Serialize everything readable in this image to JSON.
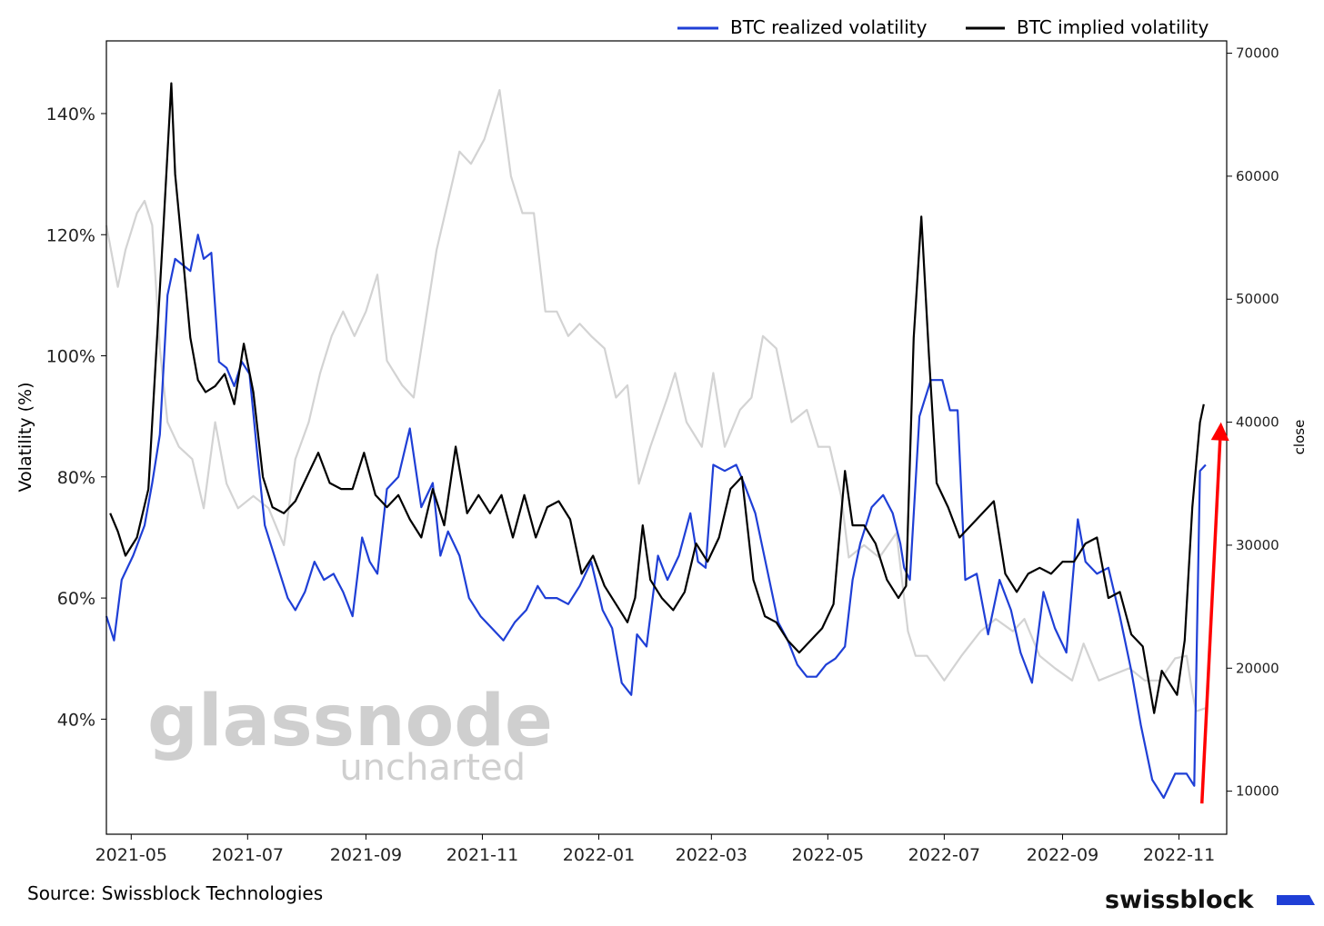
{
  "chart_data": {
    "type": "line",
    "legend": {
      "placement": "top-right",
      "entries": [
        "BTC realized volatility",
        "BTC implied volatility"
      ]
    },
    "x_ticks": [
      "2021-05",
      "2021-07",
      "2021-09",
      "2021-11",
      "2022-01",
      "2022-03",
      "2022-05",
      "2022-07",
      "2022-09",
      "2022-11"
    ],
    "y_left": {
      "label": "Volatility (%)",
      "ticks": [
        "40%",
        "60%",
        "80%",
        "100%",
        "120%",
        "140%"
      ],
      "tick_values": [
        40,
        60,
        80,
        100,
        120,
        140
      ],
      "range": [
        21,
        152
      ]
    },
    "y_right": {
      "label": "close",
      "ticks": [
        "10000",
        "20000",
        "30000",
        "40000",
        "50000",
        "60000",
        "70000"
      ],
      "tick_values": [
        10000,
        20000,
        30000,
        40000,
        50000,
        60000,
        70000
      ],
      "range": [
        6500,
        71000
      ]
    },
    "x_range": [
      "2021-04-18",
      "2022-11-26"
    ],
    "series": [
      {
        "name": "BTC realized volatility",
        "axis": "left",
        "color": "#1f3fd6",
        "x": [
          "2021-04-18",
          "2021-04-22",
          "2021-04-26",
          "2021-05-02",
          "2021-05-08",
          "2021-05-12",
          "2021-05-16",
          "2021-05-20",
          "2021-05-24",
          "2021-05-28",
          "2021-06-01",
          "2021-06-05",
          "2021-06-08",
          "2021-06-12",
          "2021-06-16",
          "2021-06-20",
          "2021-06-24",
          "2021-06-28",
          "2021-07-02",
          "2021-07-06",
          "2021-07-10",
          "2021-07-14",
          "2021-07-18",
          "2021-07-22",
          "2021-07-26",
          "2021-07-31",
          "2021-08-05",
          "2021-08-10",
          "2021-08-15",
          "2021-08-20",
          "2021-08-25",
          "2021-08-30",
          "2021-09-03",
          "2021-09-07",
          "2021-09-12",
          "2021-09-18",
          "2021-09-24",
          "2021-09-30",
          "2021-10-06",
          "2021-10-10",
          "2021-10-14",
          "2021-10-20",
          "2021-10-25",
          "2021-10-31",
          "2021-11-06",
          "2021-11-12",
          "2021-11-18",
          "2021-11-24",
          "2021-11-30",
          "2021-12-04",
          "2021-12-10",
          "2021-12-16",
          "2021-12-22",
          "2021-12-28",
          "2022-01-03",
          "2022-01-08",
          "2022-01-13",
          "2022-01-18",
          "2022-01-21",
          "2022-01-26",
          "2022-02-01",
          "2022-02-06",
          "2022-02-12",
          "2022-02-18",
          "2022-02-22",
          "2022-02-26",
          "2022-03-02",
          "2022-03-08",
          "2022-03-14",
          "2022-03-18",
          "2022-03-24",
          "2022-03-30",
          "2022-04-05",
          "2022-04-10",
          "2022-04-15",
          "2022-04-20",
          "2022-04-25",
          "2022-04-30",
          "2022-05-05",
          "2022-05-10",
          "2022-05-14",
          "2022-05-18",
          "2022-05-24",
          "2022-05-30",
          "2022-06-04",
          "2022-06-08",
          "2022-06-10",
          "2022-06-13",
          "2022-06-18",
          "2022-06-24",
          "2022-06-30",
          "2022-07-04",
          "2022-07-08",
          "2022-07-12",
          "2022-07-18",
          "2022-07-24",
          "2022-07-30",
          "2022-08-05",
          "2022-08-10",
          "2022-08-16",
          "2022-08-22",
          "2022-08-28",
          "2022-09-03",
          "2022-09-09",
          "2022-09-13",
          "2022-09-19",
          "2022-09-25",
          "2022-10-01",
          "2022-10-07",
          "2022-10-12",
          "2022-10-18",
          "2022-10-24",
          "2022-10-30",
          "2022-11-05",
          "2022-11-09",
          "2022-11-12",
          "2022-11-15"
        ],
        "y": [
          57,
          53,
          63,
          67,
          72,
          79,
          87,
          110,
          116,
          115,
          114,
          120,
          116,
          117,
          99,
          98,
          95,
          99,
          97,
          84,
          72,
          68,
          64,
          60,
          58,
          61,
          66,
          63,
          64,
          61,
          57,
          70,
          66,
          64,
          78,
          80,
          88,
          75,
          79,
          67,
          71,
          67,
          60,
          57,
          55,
          53,
          56,
          58,
          62,
          60,
          60,
          59,
          62,
          66,
          58,
          55,
          46,
          44,
          54,
          52,
          67,
          63,
          67,
          74,
          66,
          65,
          82,
          81,
          82,
          79,
          74,
          65,
          56,
          53,
          49,
          47,
          47,
          49,
          50,
          52,
          63,
          69,
          75,
          77,
          74,
          69,
          65,
          63,
          90,
          96,
          96,
          91,
          91,
          63,
          64,
          54,
          63,
          58,
          51,
          46,
          61,
          55,
          51,
          73,
          66,
          64,
          65,
          57,
          48,
          39,
          30,
          27,
          31,
          31,
          29,
          81,
          82
        ]
      },
      {
        "name": "BTC implied volatility",
        "axis": "left",
        "color": "#000000",
        "x": [
          "2021-04-20",
          "2021-04-24",
          "2021-04-28",
          "2021-05-04",
          "2021-05-10",
          "2021-05-14",
          "2021-05-18",
          "2021-05-22",
          "2021-05-24",
          "2021-05-27",
          "2021-06-01",
          "2021-06-05",
          "2021-06-09",
          "2021-06-14",
          "2021-06-19",
          "2021-06-24",
          "2021-06-29",
          "2021-07-04",
          "2021-07-09",
          "2021-07-14",
          "2021-07-20",
          "2021-07-26",
          "2021-08-01",
          "2021-08-07",
          "2021-08-13",
          "2021-08-19",
          "2021-08-25",
          "2021-08-31",
          "2021-09-06",
          "2021-09-12",
          "2021-09-18",
          "2021-09-24",
          "2021-09-30",
          "2021-10-06",
          "2021-10-12",
          "2021-10-18",
          "2021-10-24",
          "2021-10-30",
          "2021-11-05",
          "2021-11-11",
          "2021-11-17",
          "2021-11-23",
          "2021-11-29",
          "2021-12-05",
          "2021-12-11",
          "2021-12-17",
          "2021-12-23",
          "2021-12-29",
          "2022-01-04",
          "2022-01-10",
          "2022-01-16",
          "2022-01-20",
          "2022-01-24",
          "2022-01-28",
          "2022-02-03",
          "2022-02-09",
          "2022-02-15",
          "2022-02-21",
          "2022-02-27",
          "2022-03-05",
          "2022-03-11",
          "2022-03-17",
          "2022-03-23",
          "2022-03-29",
          "2022-04-04",
          "2022-04-10",
          "2022-04-16",
          "2022-04-22",
          "2022-04-28",
          "2022-05-04",
          "2022-05-10",
          "2022-05-14",
          "2022-05-20",
          "2022-05-26",
          "2022-06-01",
          "2022-06-07",
          "2022-06-11",
          "2022-06-15",
          "2022-06-19",
          "2022-06-23",
          "2022-06-27",
          "2022-07-03",
          "2022-07-09",
          "2022-07-15",
          "2022-07-21",
          "2022-07-27",
          "2022-08-02",
          "2022-08-08",
          "2022-08-14",
          "2022-08-20",
          "2022-08-26",
          "2022-09-01",
          "2022-09-07",
          "2022-09-13",
          "2022-09-19",
          "2022-09-25",
          "2022-10-01",
          "2022-10-07",
          "2022-10-13",
          "2022-10-19",
          "2022-10-23",
          "2022-10-27",
          "2022-10-31",
          "2022-11-04",
          "2022-11-08",
          "2022-11-12",
          "2022-11-14"
        ],
        "y": [
          74,
          71,
          67,
          70,
          78,
          100,
          122,
          145,
          130,
          120,
          103,
          96,
          94,
          95,
          97,
          92,
          102,
          94,
          80,
          75,
          74,
          76,
          80,
          84,
          79,
          78,
          78,
          84,
          77,
          75,
          77,
          73,
          70,
          78,
          72,
          85,
          74,
          77,
          74,
          77,
          70,
          77,
          70,
          75,
          76,
          73,
          64,
          67,
          62,
          59,
          56,
          60,
          72,
          63,
          60,
          58,
          61,
          69,
          66,
          70,
          78,
          80,
          63,
          57,
          56,
          53,
          51,
          53,
          55,
          59,
          81,
          72,
          72,
          69,
          63,
          60,
          62,
          103,
          123,
          100,
          79,
          75,
          70,
          72,
          74,
          76,
          64,
          61,
          64,
          65,
          64,
          66,
          66,
          69,
          70,
          60,
          61,
          54,
          52,
          41,
          48,
          46,
          44,
          53,
          75,
          89,
          92
        ]
      },
      {
        "name": "close",
        "axis": "right",
        "color": "#d3d3d3",
        "x": [
          "2021-04-18",
          "2021-04-24",
          "2021-04-28",
          "2021-05-04",
          "2021-05-08",
          "2021-05-12",
          "2021-05-16",
          "2021-05-20",
          "2021-05-26",
          "2021-06-02",
          "2021-06-08",
          "2021-06-14",
          "2021-06-20",
          "2021-06-26",
          "2021-07-04",
          "2021-07-12",
          "2021-07-20",
          "2021-07-26",
          "2021-08-02",
          "2021-08-08",
          "2021-08-14",
          "2021-08-20",
          "2021-08-26",
          "2021-09-01",
          "2021-09-07",
          "2021-09-12",
          "2021-09-20",
          "2021-09-26",
          "2021-10-02",
          "2021-10-08",
          "2021-10-14",
          "2021-10-20",
          "2021-10-26",
          "2021-11-02",
          "2021-11-10",
          "2021-11-16",
          "2021-11-22",
          "2021-11-28",
          "2021-12-04",
          "2021-12-10",
          "2021-12-16",
          "2021-12-22",
          "2021-12-28",
          "2022-01-04",
          "2022-01-10",
          "2022-01-16",
          "2022-01-22",
          "2022-01-28",
          "2022-02-06",
          "2022-02-10",
          "2022-02-16",
          "2022-02-24",
          "2022-03-02",
          "2022-03-08",
          "2022-03-16",
          "2022-03-22",
          "2022-03-28",
          "2022-04-04",
          "2022-04-12",
          "2022-04-20",
          "2022-04-26",
          "2022-05-02",
          "2022-05-08",
          "2022-05-12",
          "2022-05-20",
          "2022-05-28",
          "2022-06-06",
          "2022-06-12",
          "2022-06-16",
          "2022-06-22",
          "2022-07-01",
          "2022-07-10",
          "2022-07-20",
          "2022-07-28",
          "2022-08-06",
          "2022-08-12",
          "2022-08-20",
          "2022-08-28",
          "2022-09-06",
          "2022-09-12",
          "2022-09-20",
          "2022-09-28",
          "2022-10-06",
          "2022-10-14",
          "2022-10-22",
          "2022-10-30",
          "2022-11-05",
          "2022-11-08",
          "2022-11-10",
          "2022-11-16"
        ],
        "y": [
          56000,
          51000,
          54000,
          57000,
          58000,
          56000,
          46000,
          40000,
          38000,
          37000,
          33000,
          40000,
          35000,
          33000,
          34000,
          33000,
          30000,
          37000,
          40000,
          44000,
          47000,
          49000,
          47000,
          49000,
          52000,
          45000,
          43000,
          42000,
          48000,
          54000,
          58000,
          62000,
          61000,
          63000,
          67000,
          60000,
          57000,
          57000,
          49000,
          49000,
          47000,
          48000,
          47000,
          46000,
          42000,
          43000,
          35000,
          38000,
          42000,
          44000,
          40000,
          38000,
          44000,
          38000,
          41000,
          42000,
          47000,
          46000,
          40000,
          41000,
          38000,
          38000,
          34000,
          29000,
          30000,
          29000,
          31000,
          23000,
          21000,
          21000,
          19000,
          21000,
          23000,
          24000,
          23000,
          24000,
          21000,
          20000,
          19000,
          22000,
          19000,
          19500,
          20000,
          19000,
          19000,
          20800,
          21000,
          18000,
          16500,
          16800
        ]
      }
    ],
    "annotation": {
      "type": "arrow",
      "color": "#ff0000",
      "from": {
        "x": "2022-11-13",
        "y": 9000
      },
      "to": {
        "x": "2022-11-23",
        "y": 40000
      },
      "axis": "right"
    }
  },
  "watermark": {
    "main": "glassnode",
    "sub": "uncharted"
  },
  "footer": {
    "source": "Source: Swissblock Technologies",
    "brand": "swissblock",
    "brand_color": "#1f3fd6"
  }
}
